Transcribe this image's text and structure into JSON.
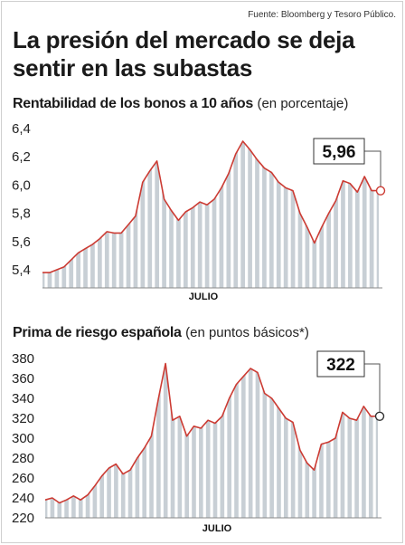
{
  "source": "Fuente: Bloomberg y Tesoro Público.",
  "headline": "La presión del mercado se deja sentir en las subastas",
  "colors": {
    "line": "#cc3b33",
    "area": "#c8cfd5",
    "stripe": "#ffffff",
    "frame": "#cfcfcf"
  },
  "chart_data": [
    {
      "type": "area",
      "title": "Rentabilidad de los bonos a 10 años",
      "unit_note": "(en porcentaje)",
      "xlabel": "JULIO",
      "ylim": [
        5.4,
        6.4
      ],
      "yticks": [
        "6,4",
        "6,2",
        "6,0",
        "5,8",
        "5,6",
        "5,4"
      ],
      "ytick_values": [
        6.4,
        6.2,
        6.0,
        5.8,
        5.6,
        5.4
      ],
      "grid": false,
      "last_label": "5,96",
      "x": [
        0,
        1,
        2,
        3,
        4,
        5,
        6,
        7,
        8,
        9,
        10,
        11,
        12,
        13,
        14,
        15,
        16,
        17,
        18,
        19,
        20,
        21,
        22,
        23,
        24,
        25,
        26,
        27,
        28,
        29,
        30,
        31,
        32,
        33,
        34,
        35,
        36,
        37,
        38,
        39,
        40,
        41,
        42,
        43,
        44,
        45,
        46,
        47
      ],
      "values": [
        5.38,
        5.38,
        5.4,
        5.42,
        5.47,
        5.52,
        5.55,
        5.58,
        5.62,
        5.67,
        5.66,
        5.66,
        5.72,
        5.78,
        6.02,
        6.1,
        6.17,
        5.9,
        5.82,
        5.75,
        5.81,
        5.84,
        5.88,
        5.86,
        5.9,
        5.98,
        6.08,
        6.22,
        6.31,
        6.25,
        6.18,
        6.12,
        6.09,
        6.02,
        5.98,
        5.96,
        5.8,
        5.7,
        5.59,
        5.7,
        5.8,
        5.89,
        6.03,
        6.01,
        5.95,
        6.06,
        5.96,
        5.96
      ]
    },
    {
      "type": "area",
      "title": "Prima de riesgo española",
      "unit_note": "(en puntos básicos*)",
      "xlabel": "JULIO",
      "ylim": [
        220,
        380
      ],
      "yticks": [
        "380",
        "360",
        "340",
        "320",
        "300",
        "280",
        "260",
        "240",
        "220"
      ],
      "ytick_values": [
        380,
        360,
        340,
        320,
        300,
        280,
        260,
        240,
        220
      ],
      "grid": false,
      "last_label": "322",
      "x": [
        0,
        1,
        2,
        3,
        4,
        5,
        6,
        7,
        8,
        9,
        10,
        11,
        12,
        13,
        14,
        15,
        16,
        17,
        18,
        19,
        20,
        21,
        22,
        23,
        24,
        25,
        26,
        27,
        28,
        29,
        30,
        31,
        32,
        33,
        34,
        35,
        36,
        37,
        38,
        39,
        40,
        41,
        42,
        43,
        44,
        45,
        46,
        47
      ],
      "values": [
        238,
        240,
        235,
        238,
        242,
        238,
        243,
        252,
        262,
        270,
        274,
        264,
        268,
        280,
        290,
        302,
        340,
        375,
        318,
        322,
        302,
        312,
        310,
        318,
        315,
        322,
        340,
        354,
        362,
        370,
        366,
        345,
        340,
        330,
        320,
        316,
        288,
        275,
        268,
        294,
        296,
        300,
        326,
        320,
        318,
        332,
        322,
        322
      ]
    }
  ]
}
